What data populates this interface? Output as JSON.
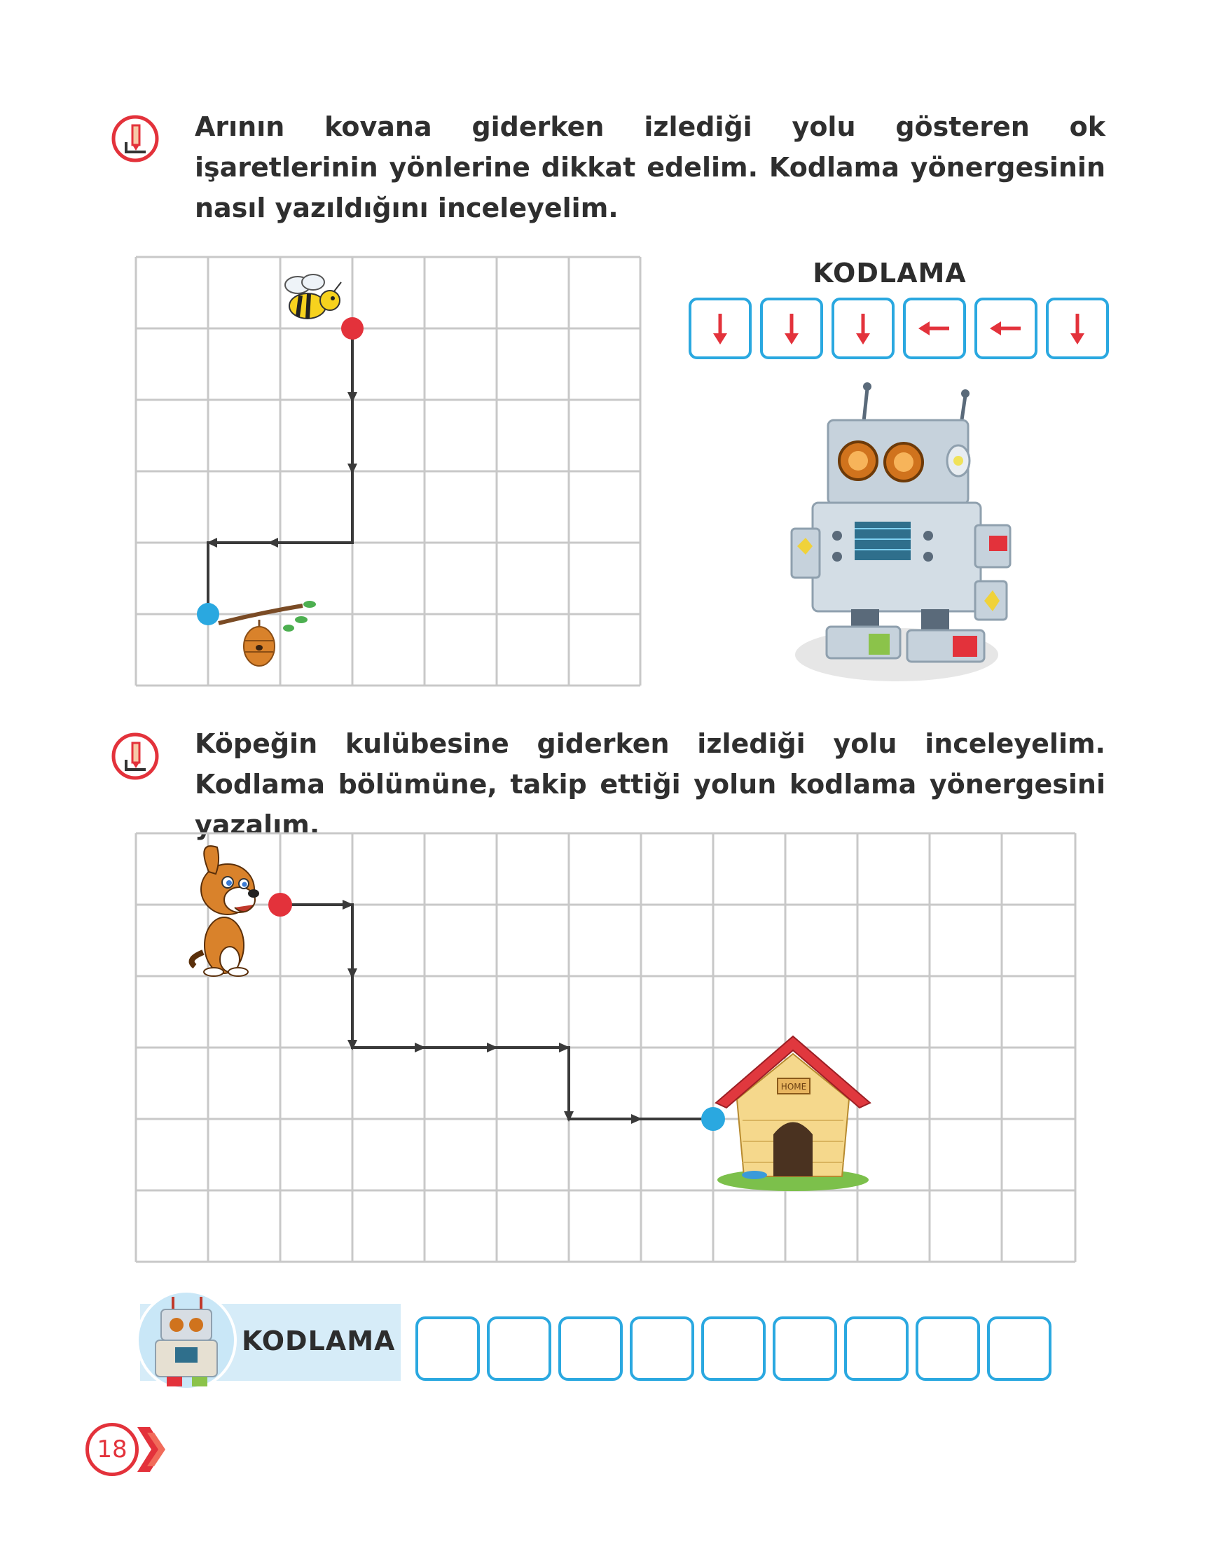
{
  "section1": {
    "instruction": "Arının kovana giderken izlediği yolu gösteren ok işaretlerinin yönlerine dikkat edelim. Kodlama yönergesinin nasıl yazıldığını inceleyelim.",
    "coding_title": "KODLAMA",
    "coding_arrows": [
      "down",
      "down",
      "down",
      "left",
      "left",
      "down"
    ],
    "grid": {
      "columns": 7,
      "rows": 6
    }
  },
  "section2": {
    "instruction": "Köpeğin kulübesine giderken izlediği yolu inceleyelim. Kodlama bölümüne, takip ettiği yolun kodlama yönergesini yazalım.",
    "grid": {
      "columns": 13,
      "rows": 6
    },
    "house_sign": "HOME",
    "coding_label": "KODLAMA",
    "answer_boxes": 9
  },
  "page_number": "18",
  "colors": {
    "accent_blue": "#2aa8e0",
    "arrow_red": "#e3323b",
    "grid_gray": "#c8c8c8",
    "path_dark": "#3a3a3a",
    "start_dot": "#e3323b",
    "end_dot": "#2aa8e0"
  },
  "icons": [
    "pencil-icon",
    "bee-icon",
    "beehive-icon",
    "robot-icon",
    "dog-icon",
    "doghouse-icon"
  ]
}
